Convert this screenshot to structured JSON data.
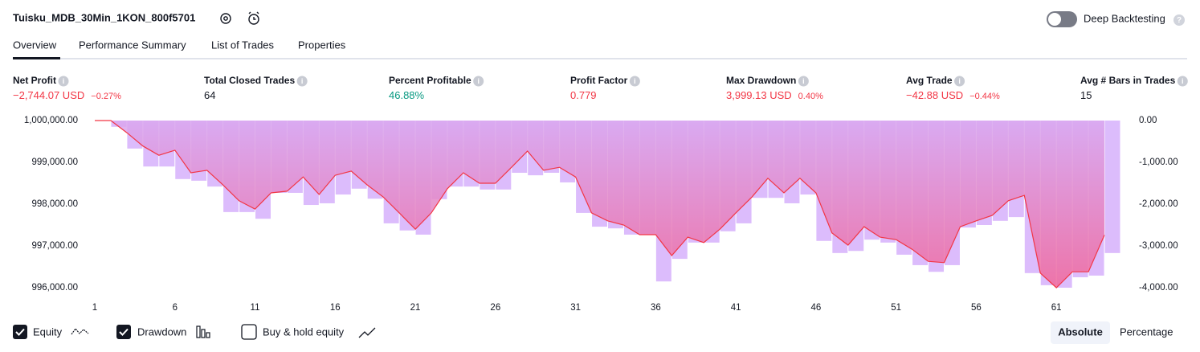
{
  "header": {
    "title": "Tuisku_MDB_30Min_1KON_800f5701",
    "toggle": "Deep Backtesting"
  },
  "tabs": [
    "Overview",
    "Performance Summary",
    "List of Trades",
    "Properties"
  ],
  "metrics": [
    {
      "label": "Net Profit",
      "value": "−2,744.07 USD",
      "sub": "−0.27%",
      "color": "#f23645"
    },
    {
      "label": "Total Closed Trades",
      "value": "64",
      "color": "#131722"
    },
    {
      "label": "Percent Profitable",
      "value": "46.88%",
      "color": "#089981"
    },
    {
      "label": "Profit Factor",
      "value": "0.779",
      "color": "#f23645"
    },
    {
      "label": "Max Drawdown",
      "value": "3,999.13 USD",
      "sub": "0.40%",
      "color": "#f23645"
    },
    {
      "label": "Avg Trade",
      "value": "−42.88 USD",
      "sub": "−0.44%",
      "color": "#f23645"
    },
    {
      "label": "Avg # Bars in Trades",
      "value": "15",
      "color": "#131722"
    }
  ],
  "chart_data": {
    "type": "line",
    "x": [
      1,
      2,
      3,
      4,
      5,
      6,
      7,
      8,
      9,
      10,
      11,
      12,
      13,
      14,
      15,
      16,
      17,
      18,
      19,
      20,
      21,
      22,
      23,
      24,
      25,
      26,
      27,
      28,
      29,
      30,
      31,
      32,
      33,
      34,
      35,
      36,
      37,
      38,
      39,
      40,
      41,
      42,
      43,
      44,
      45,
      46,
      47,
      48,
      49,
      50,
      51,
      52,
      53,
      54,
      55,
      56,
      57,
      58,
      59,
      60,
      61,
      62,
      63,
      64
    ],
    "xlim": [
      1,
      65
    ],
    "xticks": [
      1,
      6,
      11,
      16,
      21,
      26,
      31,
      36,
      41,
      46,
      51,
      56,
      61
    ],
    "ylim": [
      996000,
      1000000
    ],
    "yticks": [
      {
        "value": 1000000,
        "label": "1,000,000.00"
      },
      {
        "value": 999000,
        "label": "999,000.00"
      },
      {
        "value": 998000,
        "label": "998,000.00"
      },
      {
        "value": 997000,
        "label": "997,000.00"
      },
      {
        "value": 996000,
        "label": "996,000.00"
      }
    ],
    "y2lim": [
      -4000,
      0
    ],
    "y2ticks": [
      {
        "value": 0,
        "label": "0.00"
      },
      {
        "value": -1000,
        "label": "-1,000.00"
      },
      {
        "value": -2000,
        "label": "-2,000.00"
      },
      {
        "value": -3000,
        "label": "-3,000.00"
      },
      {
        "value": -4000,
        "label": "-4,000.00"
      }
    ],
    "series": [
      {
        "name": "Equity",
        "color": "#f23645",
        "values": [
          1000000,
          1000000,
          999710,
          999390,
          999170,
          999290,
          998750,
          998810,
          998460,
          998080,
          997880,
          998270,
          998310,
          998650,
          998230,
          998690,
          998790,
          998460,
          998170,
          997790,
          997400,
          997790,
          998370,
          998750,
          998500,
          998500,
          998880,
          999270,
          998810,
          998880,
          998650,
          997790,
          997600,
          997500,
          997270,
          997270,
          996770,
          997210,
          997080,
          997400,
          997790,
          998170,
          998620,
          998270,
          998620,
          998270,
          997310,
          997020,
          997460,
          997210,
          997150,
          996920,
          996630,
          996600,
          997460,
          997600,
          997730,
          998080,
          998210,
          996350,
          996000,
          996380,
          996380,
          997260
        ]
      },
      {
        "name": "Drawdown",
        "color": "#dcbcfc",
        "type": "bar",
        "axis": "y2",
        "values": [
          0,
          -150,
          -670,
          -1100,
          -1100,
          -1400,
          -1440,
          -1580,
          -2190,
          -2190,
          -2350,
          -1730,
          -1730,
          -2020,
          -1980,
          -1770,
          -1630,
          -1870,
          -2460,
          -2630,
          -2730,
          -1880,
          -1580,
          -1580,
          -1650,
          -1650,
          -1250,
          -1310,
          -1250,
          -1480,
          -2210,
          -2540,
          -2580,
          -2730,
          -2730,
          -3850,
          -3310,
          -2920,
          -2920,
          -2650,
          -2460,
          -1850,
          -1850,
          -1980,
          -1770,
          -2880,
          -3170,
          -3120,
          -2850,
          -2920,
          -3210,
          -3460,
          -3620,
          -3460,
          -2560,
          -2500,
          -2400,
          -2310,
          -3650,
          -3940,
          -4000,
          -3750,
          -3710,
          -3170
        ]
      }
    ]
  },
  "footer": {
    "option": "Buy & hold equity",
    "modes": [
      "Absolute",
      "Percentage"
    ]
  }
}
